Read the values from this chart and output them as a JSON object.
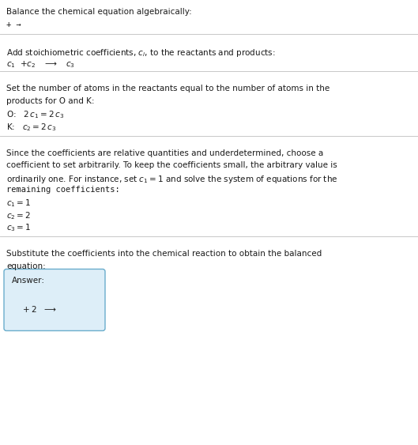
{
  "title": "Balance the chemical equation algebraically:",
  "section1_arrow": "+ →",
  "section2_header_pre": "Add stoichiometric coefficients, ",
  "section2_header_post": ", to the reactants and products:",
  "section2_eq": "c_1  +c_2   →   c_3",
  "section3_header1": "Set the number of atoms in the reactants equal to the number of atoms in the",
  "section3_header2": "products for O and K:",
  "section3_O": "O:   2 c_1 = 2 c_3",
  "section3_K": "K:   c_2 = 2 c_3",
  "section4_header1": "Since the coefficients are relative quantities and underdetermined, choose a",
  "section4_header2": "coefficient to set arbitrarily. To keep the coefficients small, the arbitrary value is",
  "section4_header3": "ordinarily one. For instance, set c_1 = 1 and solve the system of equations for the",
  "section4_header4": "remaining coefficients:",
  "section4_c1": "c_1 = 1",
  "section4_c2": "c_2 = 2",
  "section4_c3": "c_3 = 1",
  "section5_header1": "Substitute the coefficients into the chemical reaction to obtain the balanced",
  "section5_header2": "equation:",
  "answer_label": "Answer:",
  "answer_content": "+ 2  →",
  "bg_color": "#ffffff",
  "text_color": "#1a1a1a",
  "line_color": "#c8c8c8",
  "answer_box_fill": "#ddeef8",
  "answer_box_edge": "#6aadcc"
}
